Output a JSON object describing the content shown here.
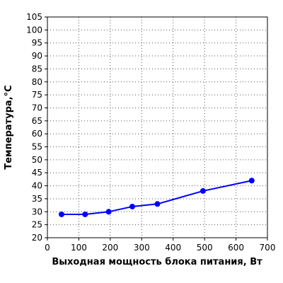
{
  "chart_data": {
    "type": "line",
    "title": "",
    "xlabel": "Выходная мощность блока питания, Вт",
    "ylabel": "Температура,°C",
    "xlim": [
      0,
      700
    ],
    "ylim": [
      20,
      105
    ],
    "x_ticks": [
      0,
      100,
      200,
      300,
      400,
      500,
      600,
      700
    ],
    "y_ticks": [
      20,
      25,
      30,
      35,
      40,
      45,
      50,
      55,
      60,
      65,
      70,
      75,
      80,
      85,
      90,
      95,
      100,
      105
    ],
    "grid": true,
    "grid_style": "dotted",
    "series": [
      {
        "color": "#0000ff",
        "x": [
          45,
          120,
          195,
          270,
          350,
          495,
          650
        ],
        "y": [
          29,
          29,
          30,
          32,
          33,
          38,
          42
        ]
      }
    ]
  }
}
